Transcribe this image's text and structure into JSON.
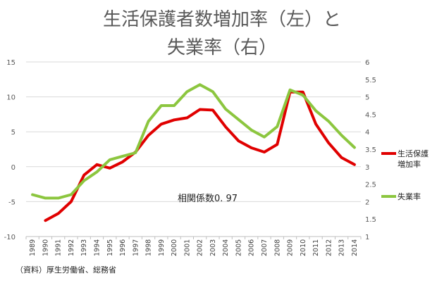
{
  "chart_data": {
    "type": "line",
    "title_line1": "生活保護者数増加率（左）と",
    "title_line2": "失業率（右）",
    "categories": [
      "1989",
      "1990",
      "1991",
      "1992",
      "1993",
      "1994",
      "1995",
      "1996",
      "1997",
      "1998",
      "1999",
      "2000",
      "2001",
      "2002",
      "2003",
      "2004",
      "2005",
      "2006",
      "2007",
      "2008",
      "2009",
      "2010",
      "2011",
      "2012",
      "2013",
      "2014"
    ],
    "y_left": {
      "min": -10,
      "max": 15,
      "ticks": [
        "15",
        "10",
        "5",
        "0",
        "-5",
        "-10"
      ]
    },
    "y_right": {
      "min": 1,
      "max": 6,
      "ticks": [
        "6",
        "5.5",
        "5",
        "4.5",
        "4",
        "3.5",
        "3",
        "2.5",
        "2",
        "1.5",
        "1"
      ]
    },
    "series": [
      {
        "name": "生活保護増加率",
        "legend_line1": "生活保護",
        "legend_line2": "増加率",
        "axis": "left",
        "color": "#e00000",
        "values": [
          null,
          -7.7,
          -6.7,
          -5.0,
          -1.2,
          0.3,
          -0.2,
          0.7,
          2.1,
          4.5,
          6.1,
          6.7,
          7.0,
          8.2,
          8.1,
          5.7,
          3.7,
          2.7,
          2.1,
          3.2,
          10.7,
          10.7,
          6.1,
          3.4,
          1.3,
          0.3
        ]
      },
      {
        "name": "失業率",
        "legend_line1": "失業率",
        "axis": "right",
        "color": "#8cc63f",
        "values": [
          2.2,
          2.1,
          2.1,
          2.2,
          2.6,
          2.85,
          3.2,
          3.3,
          3.4,
          4.3,
          4.75,
          4.75,
          5.15,
          5.35,
          5.15,
          4.65,
          4.35,
          4.05,
          3.85,
          4.15,
          5.2,
          5.05,
          4.6,
          4.3,
          3.9,
          3.55
        ]
      }
    ],
    "annotation": "相関係数0. 97",
    "source": "（資料）厚生労働省、総務省",
    "grid": true
  }
}
